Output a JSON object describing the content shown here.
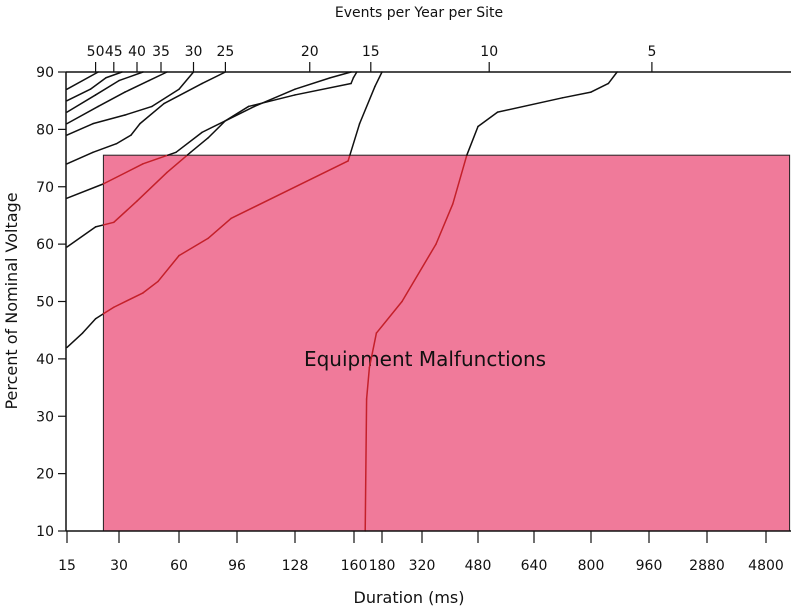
{
  "chart_data": {
    "type": "line",
    "title": "Events per Year per Site",
    "xlabel": "Duration (ms)",
    "ylabel": "Percent of Nominal Voltage",
    "region_label": "Equipment Malfunctions",
    "x_ticks": [
      "15",
      "30",
      "60",
      "96",
      "128",
      "160",
      "180",
      "320",
      "480",
      "640",
      "800",
      "960",
      "2880",
      "4800"
    ],
    "y_ticks": [
      10,
      20,
      30,
      40,
      50,
      60,
      70,
      80,
      90
    ],
    "ylim": [
      10,
      90
    ],
    "top_ticks": [
      "50",
      "45",
      "40",
      "35",
      "30",
      "25",
      "20",
      "15",
      "10",
      "5"
    ],
    "top_tick_index": [
      0.55,
      0.9,
      1.3,
      1.7,
      2.25,
      2.8,
      4.25,
      5.6,
      8.2,
      11.05
    ],
    "region": {
      "x_start_index": 0.7,
      "x_end_index": 13.4,
      "y_start": 10,
      "y_end": 75.5
    },
    "region_color": "#f07a9a",
    "series": [
      {
        "values": [
          [
            0,
            87
          ],
          [
            0.6,
            90
          ]
        ]
      },
      {
        "values": [
          [
            0,
            85
          ],
          [
            0.45,
            87
          ],
          [
            0.75,
            89
          ],
          [
            1.05,
            90
          ]
        ]
      },
      {
        "values": [
          [
            0,
            83
          ],
          [
            0.55,
            86
          ],
          [
            1.0,
            88.5
          ],
          [
            1.4,
            90
          ]
        ]
      },
      {
        "values": [
          [
            0,
            81
          ],
          [
            0.6,
            84
          ],
          [
            1.1,
            86.5
          ],
          [
            1.5,
            88.5
          ],
          [
            1.8,
            90
          ]
        ]
      },
      {
        "values": [
          [
            0,
            79
          ],
          [
            0.5,
            81
          ],
          [
            1.1,
            82.5
          ],
          [
            1.55,
            84
          ],
          [
            2.0,
            87
          ],
          [
            2.25,
            90
          ]
        ]
      },
      {
        "values": [
          [
            0,
            74
          ],
          [
            0.5,
            76
          ],
          [
            0.95,
            77.5
          ],
          [
            1.2,
            79
          ],
          [
            1.35,
            81
          ],
          [
            1.75,
            84.5
          ],
          [
            2.4,
            88
          ],
          [
            2.8,
            90
          ]
        ]
      },
      {
        "values": [
          [
            0,
            68
          ],
          [
            0.7,
            70.5
          ],
          [
            1.4,
            74
          ],
          [
            1.95,
            76
          ],
          [
            2.4,
            79.5
          ],
          [
            2.8,
            81.5
          ],
          [
            3.2,
            84
          ],
          [
            4.0,
            86
          ],
          [
            4.95,
            88
          ],
          [
            4.99,
            89
          ],
          [
            5.1,
            90
          ]
        ]
      },
      {
        "values": [
          [
            0,
            59.5
          ],
          [
            0.55,
            63
          ],
          [
            0.9,
            63.8
          ],
          [
            1.3,
            67.5
          ],
          [
            1.8,
            72.5
          ],
          [
            2.2,
            76
          ],
          [
            2.5,
            78.5
          ],
          [
            2.8,
            81.5
          ],
          [
            3.3,
            84
          ],
          [
            4.0,
            87
          ],
          [
            4.6,
            89
          ],
          [
            4.95,
            90
          ]
        ]
      },
      {
        "values": [
          [
            0,
            42
          ],
          [
            0.3,
            44.5
          ],
          [
            0.55,
            47
          ],
          [
            0.9,
            49
          ],
          [
            1.4,
            51.5
          ],
          [
            1.65,
            53.5
          ],
          [
            2.0,
            58
          ],
          [
            2.5,
            61
          ],
          [
            2.9,
            64.5
          ],
          [
            4.9,
            74.5
          ],
          [
            5.2,
            81
          ],
          [
            5.75,
            87.5
          ],
          [
            6.0,
            90
          ]
        ]
      },
      {
        "values": [
          [
            5.4,
            10
          ],
          [
            5.45,
            33
          ],
          [
            5.55,
            38.5
          ],
          [
            5.8,
            44.5
          ],
          [
            6.5,
            50
          ],
          [
            7.25,
            60
          ],
          [
            7.55,
            67
          ],
          [
            7.8,
            75.5
          ],
          [
            8.0,
            80.5
          ],
          [
            8.35,
            83
          ],
          [
            9.5,
            85.5
          ],
          [
            10.0,
            86.5
          ],
          [
            10.3,
            88
          ],
          [
            10.45,
            90
          ]
        ]
      }
    ]
  }
}
